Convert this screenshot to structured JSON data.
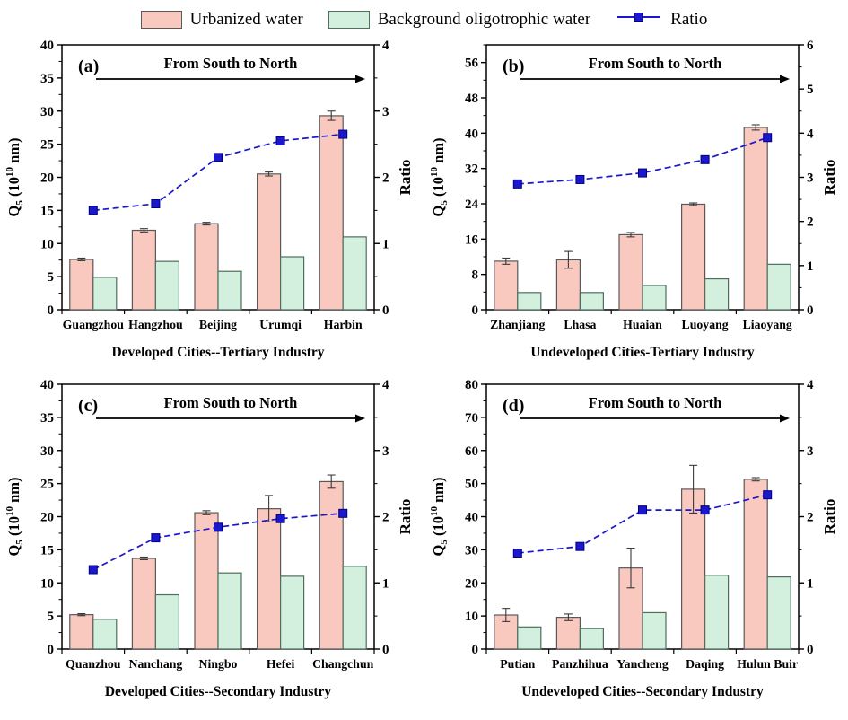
{
  "legend": {
    "urbanized_label": "Urbanized water",
    "background_label": "Background oligotrophic water",
    "ratio_label": "Ratio"
  },
  "colors": {
    "urbanized_fill": "#f9c8be",
    "urbanized_border": "#595959",
    "background_fill": "#d3efde",
    "background_border": "#4e6e5e",
    "ratio_line": "#1a17cc",
    "ratio_marker": "#1a17cc",
    "ratio_marker_border": "#000080",
    "axis": "#000000",
    "error_bar": "#3a3a3a"
  },
  "chart_data": [
    {
      "type": "bar",
      "panel_label": "(a)",
      "annotation": "From South to North",
      "xlabel": "Developed Cities--Tertiary Industry",
      "ylabel_left": "Q_5 (10^10 nm)",
      "ylabel_right": "Ratio",
      "categories": [
        "Guangzhou",
        "Hangzhou",
        "Beijing",
        "Urumqi",
        "Harbin"
      ],
      "series": [
        {
          "name": "Urbanized water",
          "values": [
            7.6,
            12.0,
            13.0,
            20.5,
            29.3
          ],
          "errors": [
            0.2,
            0.25,
            0.2,
            0.3,
            0.7
          ]
        },
        {
          "name": "Background oligotrophic water",
          "values": [
            4.9,
            7.3,
            5.8,
            8.0,
            11.0
          ]
        }
      ],
      "ratio_series": {
        "name": "Ratio",
        "values": [
          1.5,
          1.6,
          2.3,
          2.55,
          2.65
        ]
      },
      "left_axis": {
        "min": 0,
        "max": 40,
        "major": 5,
        "minor": 2.5
      },
      "right_axis": {
        "min": 0,
        "max": 4,
        "major": 1,
        "minor": 0.5
      },
      "legend_position": "none",
      "grid": "off"
    },
    {
      "type": "bar",
      "panel_label": "(b)",
      "annotation": "From South to North",
      "xlabel": "Undeveloped Cities-Tertiary Industry",
      "ylabel_left": "Q_5 (10^10 nm)",
      "ylabel_right": "Ratio",
      "categories": [
        "Zhanjiang",
        "Lhasa",
        "Huaian",
        "Luoyang",
        "Liaoyang"
      ],
      "series": [
        {
          "name": "Urbanized water",
          "values": [
            11.0,
            11.3,
            17.0,
            23.9,
            41.3
          ],
          "errors": [
            0.7,
            1.9,
            0.5,
            0.3,
            0.6
          ]
        },
        {
          "name": "Background oligotrophic water",
          "values": [
            3.9,
            3.9,
            5.5,
            7.0,
            10.3
          ]
        }
      ],
      "ratio_series": {
        "name": "Ratio",
        "values": [
          2.85,
          2.95,
          3.1,
          3.4,
          3.9
        ]
      },
      "left_axis": {
        "min": 0,
        "max": 60,
        "major": 8,
        "minor": 4
      },
      "right_axis": {
        "min": 0,
        "max": 6,
        "major": 1,
        "minor": 0.5
      },
      "legend_position": "none",
      "grid": "off"
    },
    {
      "type": "bar",
      "panel_label": "(c)",
      "annotation": "From South to North",
      "xlabel": "Developed Cities--Secondary Industry",
      "ylabel_left": "Q_5 (10^10 nm)",
      "ylabel_right": "Ratio",
      "categories": [
        "Quanzhou",
        "Nanchang",
        "Ningbo",
        "Hefei",
        "Changchun"
      ],
      "series": [
        {
          "name": "Urbanized water",
          "values": [
            5.2,
            13.7,
            20.6,
            21.2,
            25.3
          ],
          "errors": [
            0.15,
            0.2,
            0.3,
            2.0,
            1.0
          ]
        },
        {
          "name": "Background oligotrophic water",
          "values": [
            4.5,
            8.2,
            11.5,
            11.0,
            12.5
          ]
        }
      ],
      "ratio_series": {
        "name": "Ratio",
        "values": [
          1.2,
          1.68,
          1.84,
          1.97,
          2.05
        ]
      },
      "left_axis": {
        "min": 0,
        "max": 40,
        "major": 5,
        "minor": 2.5
      },
      "right_axis": {
        "min": 0,
        "max": 4,
        "major": 1,
        "minor": 0.5
      },
      "legend_position": "none",
      "grid": "off"
    },
    {
      "type": "bar",
      "panel_label": "(d)",
      "annotation": "From South to North",
      "xlabel": "Undeveloped Cities--Secondary Industry",
      "ylabel_left": "Q_5 (10^10 nm)",
      "ylabel_right": "Ratio",
      "categories": [
        "Putian",
        "Panzhihua",
        "Yancheng",
        "Daqing",
        "Hulun Buir"
      ],
      "series": [
        {
          "name": "Urbanized water",
          "values": [
            10.3,
            9.6,
            24.5,
            48.3,
            51.3
          ],
          "errors": [
            2.0,
            1.0,
            6.0,
            7.2,
            0.5
          ]
        },
        {
          "name": "Background oligotrophic water",
          "values": [
            6.7,
            6.2,
            11.0,
            22.3,
            21.8
          ]
        }
      ],
      "ratio_series": {
        "name": "Ratio",
        "values": [
          1.45,
          1.55,
          2.1,
          2.1,
          2.33
        ]
      },
      "left_axis": {
        "min": 0,
        "max": 80,
        "major": 10,
        "minor": 5
      },
      "right_axis": {
        "min": 0,
        "max": 4,
        "major": 1,
        "minor": 0.5
      },
      "legend_position": "none",
      "grid": "off"
    }
  ]
}
